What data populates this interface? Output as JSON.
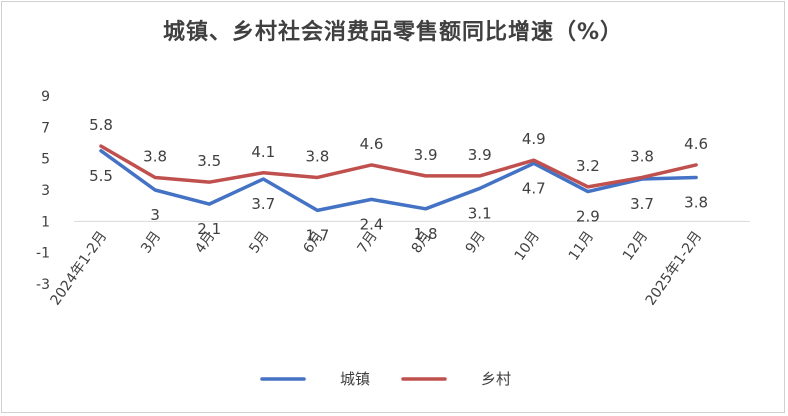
{
  "chart_data": {
    "type": "line",
    "title": "城镇、乡村社会消费品零售额同比增速（%）",
    "categories": [
      "2024年1-2月",
      "3月",
      "4月",
      "5月",
      "6月",
      "7月",
      "8月",
      "9月",
      "10月",
      "11月",
      "12月",
      "2025年1-2月"
    ],
    "series": [
      {
        "name": "城镇",
        "color": "#4472C4",
        "values": [
          5.5,
          3.0,
          2.1,
          3.7,
          1.7,
          2.4,
          1.8,
          3.1,
          4.7,
          2.9,
          3.7,
          3.8
        ],
        "labels": [
          "5.5",
          "3",
          "2.1",
          "3.7",
          "1.7",
          "2.4",
          "1.8",
          "3.1",
          "4.7",
          "2.9",
          "3.7",
          "3.8"
        ]
      },
      {
        "name": "乡村",
        "color": "#C0504D",
        "values": [
          5.8,
          3.8,
          3.5,
          4.1,
          3.8,
          4.6,
          3.9,
          3.9,
          4.9,
          3.2,
          3.8,
          4.6
        ],
        "labels": [
          "5.8",
          "3.8",
          "3.5",
          "4.1",
          "3.8",
          "4.6",
          "3.9",
          "3.9",
          "4.9",
          "3.2",
          "3.8",
          "4.6"
        ]
      }
    ],
    "yticks": [
      "-3",
      "-1",
      "1",
      "3",
      "5",
      "7",
      "9"
    ],
    "ylim": [
      -3,
      9
    ],
    "legend_position": "bottom",
    "grid": false
  }
}
